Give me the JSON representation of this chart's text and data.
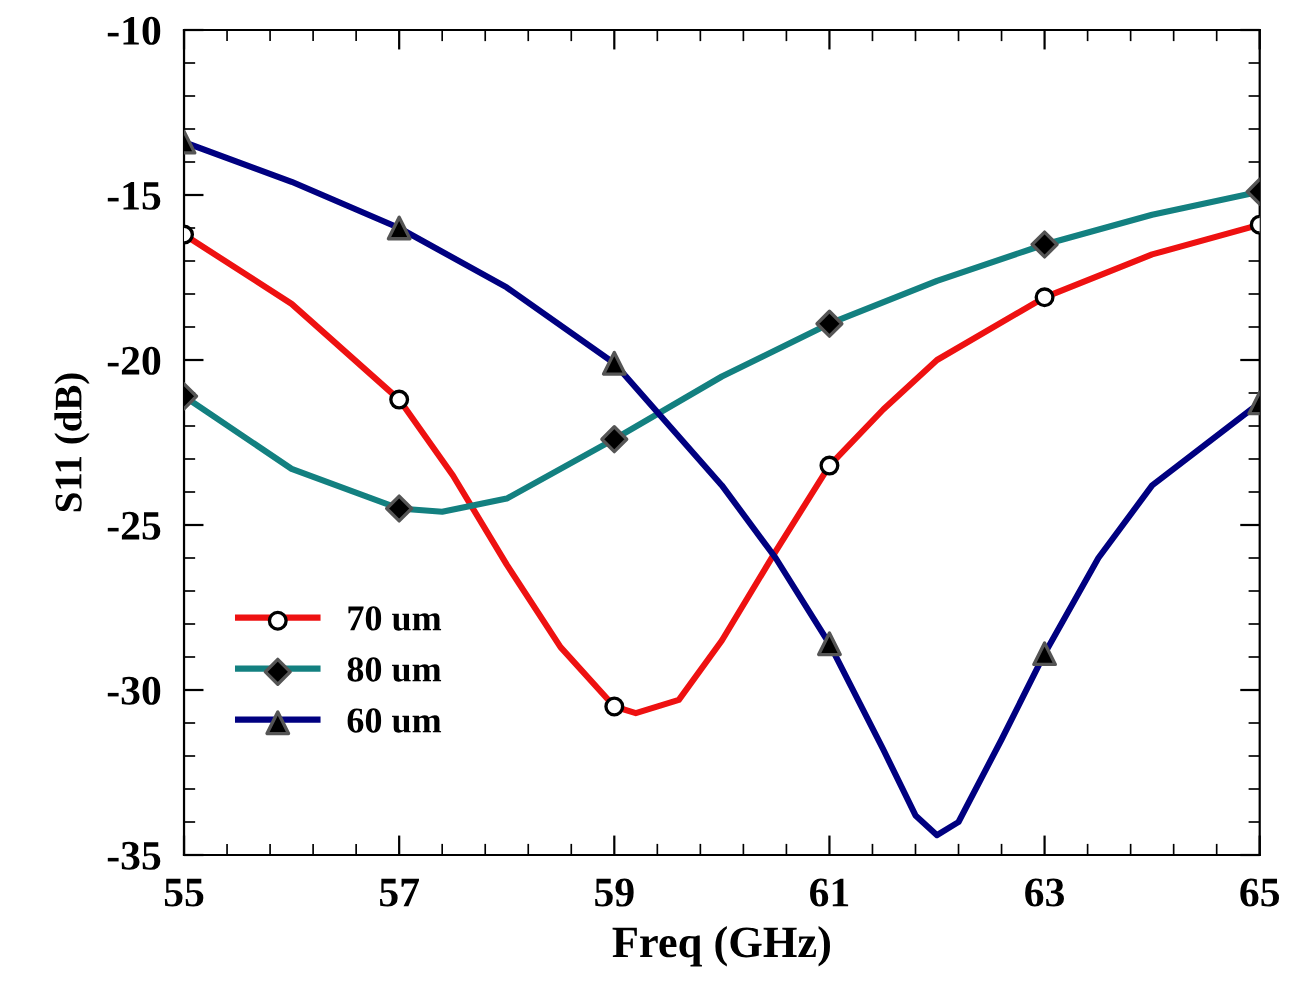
{
  "chart_data": {
    "type": "line",
    "xlabel": "Freq (GHz)",
    "ylabel": "S11 (dB)",
    "xlim": [
      55,
      65
    ],
    "xticks": [
      55,
      57,
      59,
      61,
      63,
      65
    ],
    "ylim": [
      -35,
      -10
    ],
    "yticks": [
      -35,
      -30,
      -25,
      -20,
      -15,
      -10
    ],
    "grid": false,
    "legend": "bottom left",
    "line_style": "solid",
    "series": [
      {
        "name": "70 um",
        "color": "#ee1111",
        "x": [
          55,
          56,
          57,
          57.5,
          58,
          58.5,
          59,
          59.2,
          59.6,
          60,
          60.5,
          61,
          61.5,
          62,
          63,
          64,
          65
        ],
        "values": [
          -16.2,
          -18.3,
          -21.2,
          -23.5,
          -26.2,
          -28.7,
          -30.5,
          -30.7,
          -30.3,
          -28.5,
          -25.8,
          -23.2,
          -21.5,
          -20.0,
          -18.1,
          -16.8,
          -15.9
        ]
      },
      {
        "type": "scatter",
        "marker": "circle",
        "color": "#ffffff",
        "x": [
          55,
          57,
          59,
          61,
          63,
          65
        ],
        "values": [
          -16.2,
          -21.2,
          -30.5,
          -23.2,
          -18.1,
          -15.9
        ]
      },
      {
        "name": "80 um",
        "color": "#138080",
        "x": [
          55,
          56,
          57,
          57.4,
          58,
          59,
          60,
          61,
          62,
          63,
          64,
          65
        ],
        "values": [
          -21.1,
          -23.3,
          -24.5,
          -24.6,
          -24.2,
          -22.4,
          -20.5,
          -18.9,
          -17.6,
          -16.5,
          -15.6,
          -14.9
        ]
      },
      {
        "type": "scatter",
        "marker": "diamond",
        "color": "#000000",
        "x": [
          55,
          57,
          59,
          61,
          63,
          65
        ],
        "values": [
          -21.1,
          -24.5,
          -22.4,
          -18.9,
          -16.5,
          -14.9
        ]
      },
      {
        "name": "60 um",
        "color": "#000080",
        "x": [
          55,
          56,
          57,
          58,
          59,
          60,
          60.5,
          61,
          61.5,
          61.8,
          62,
          62.2,
          62.6,
          63,
          63.5,
          64,
          65
        ],
        "values": [
          -13.4,
          -14.6,
          -16.0,
          -17.8,
          -20.1,
          -23.8,
          -26.0,
          -28.6,
          -31.8,
          -33.8,
          -34.4,
          -34.0,
          -31.5,
          -28.9,
          -26.0,
          -23.8,
          -21.3
        ]
      },
      {
        "type": "scatter",
        "marker": "triangle",
        "color": "#000000",
        "x": [
          55,
          57,
          59,
          61,
          63,
          65
        ],
        "values": [
          -13.4,
          -16.0,
          -20.1,
          -28.6,
          -28.9,
          -21.3
        ]
      }
    ]
  }
}
